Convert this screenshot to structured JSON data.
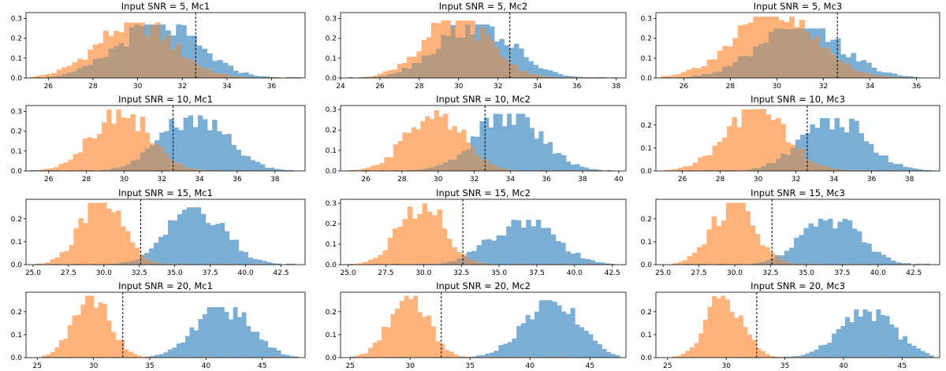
{
  "chart_data": {
    "type": "bar",
    "layout": "4 rows x 3 columns of overlaid histograms",
    "threshold_line": {
      "x": 32.6,
      "style": "dashed",
      "color": "#000000"
    },
    "series_colors": {
      "orange": "#ffb27a",
      "blue": "#7aaed4",
      "overlap": "#b79a7f"
    },
    "panels": [
      {
        "title": "Input SNR = 5, Mc1",
        "xlim": [
          25.0,
          37.5
        ],
        "ylim": [
          0,
          0.33
        ],
        "xticks": [
          "26",
          "28",
          "30",
          "32",
          "34",
          "36"
        ],
        "yticks": [
          "0.0",
          "0.1",
          "0.2",
          "0.3"
        ],
        "xtick_values": [
          26,
          28,
          30,
          32,
          34,
          36
        ],
        "ytick_values": [
          0,
          0.1,
          0.2,
          0.3
        ],
        "orange": {
          "mean": 29.9,
          "sd": 1.7,
          "peak": 0.28
        },
        "blue": {
          "mean": 30.9,
          "sd": 1.8,
          "peak": 0.27
        },
        "bins": 52,
        "range": [
          25.2,
          37.3
        ]
      },
      {
        "title": "Input SNR = 5, Mc2",
        "xlim": [
          24.0,
          38.5
        ],
        "ylim": [
          0,
          0.33
        ],
        "xticks": [
          "24",
          "26",
          "28",
          "30",
          "32",
          "34",
          "36",
          "38"
        ],
        "yticks": [
          "0.0",
          "0.1",
          "0.2",
          "0.3"
        ],
        "xtick_values": [
          24,
          26,
          28,
          30,
          32,
          34,
          36,
          38
        ],
        "ytick_values": [
          0,
          0.1,
          0.2,
          0.3
        ],
        "orange": {
          "mean": 29.9,
          "sd": 1.7,
          "peak": 0.29
        },
        "blue": {
          "mean": 30.8,
          "sd": 1.9,
          "peak": 0.27
        },
        "bins": 55,
        "range": [
          24.4,
          38.0
        ]
      },
      {
        "title": "Input SNR = 5, Mc3",
        "xlim": [
          24.8,
          37.0
        ],
        "ylim": [
          0,
          0.33
        ],
        "xticks": [
          "26",
          "28",
          "30",
          "32",
          "34",
          "36"
        ],
        "yticks": [
          "0.0",
          "0.1",
          "0.2",
          "0.3"
        ],
        "xtick_values": [
          26,
          28,
          30,
          32,
          34,
          36
        ],
        "ytick_values": [
          0,
          0.1,
          0.2,
          0.3
        ],
        "orange": {
          "mean": 29.9,
          "sd": 1.8,
          "peak": 0.31
        },
        "blue": {
          "mean": 31.0,
          "sd": 1.8,
          "peak": 0.25
        },
        "bins": 52,
        "range": [
          25.0,
          36.5
        ]
      },
      {
        "title": "Input SNR = 10, Mc1",
        "xlim": [
          24.8,
          39.6
        ],
        "ylim": [
          0,
          0.33
        ],
        "xticks": [
          "26",
          "28",
          "30",
          "32",
          "34",
          "36",
          "38"
        ],
        "yticks": [
          "0.0",
          "0.1",
          "0.2",
          "0.3"
        ],
        "xtick_values": [
          26,
          28,
          30,
          32,
          34,
          36,
          38
        ],
        "ytick_values": [
          0,
          0.1,
          0.2,
          0.3
        ],
        "orange": {
          "mean": 29.8,
          "sd": 1.5,
          "peak": 0.31
        },
        "blue": {
          "mean": 33.7,
          "sd": 1.7,
          "peak": 0.28
        },
        "bins": 55,
        "range": [
          25.0,
          39.0
        ]
      },
      {
        "title": "Input SNR = 10, Mc2",
        "xlim": [
          24.6,
          40.4
        ],
        "ylim": [
          0,
          0.32
        ],
        "xticks": [
          "26",
          "28",
          "30",
          "32",
          "34",
          "36",
          "38",
          "40"
        ],
        "yticks": [
          "0.0",
          "0.1",
          "0.2",
          "0.3"
        ],
        "xtick_values": [
          26,
          28,
          30,
          32,
          34,
          36,
          38,
          40
        ],
        "ytick_values": [
          0,
          0.1,
          0.2,
          0.3
        ],
        "orange": {
          "mean": 29.8,
          "sd": 1.5,
          "peak": 0.3
        },
        "blue": {
          "mean": 33.9,
          "sd": 1.8,
          "peak": 0.28
        },
        "bins": 58,
        "range": [
          25.0,
          39.6
        ]
      },
      {
        "title": "Input SNR = 10, Mc3",
        "xlim": [
          24.6,
          39.6
        ],
        "ylim": [
          0,
          0.285
        ],
        "xticks": [
          "26",
          "28",
          "30",
          "32",
          "34",
          "36",
          "38"
        ],
        "yticks": [
          "0.0",
          "0.1",
          "0.2"
        ],
        "xtick_values": [
          26,
          28,
          30,
          32,
          34,
          36,
          38
        ],
        "ytick_values": [
          0,
          0.1,
          0.2
        ],
        "orange": {
          "mean": 29.9,
          "sd": 1.6,
          "peak": 0.27
        },
        "blue": {
          "mean": 34.0,
          "sd": 1.7,
          "peak": 0.23
        },
        "bins": 55,
        "range": [
          25.0,
          39.2
        ]
      },
      {
        "title": "Input SNR = 15, Mc1",
        "xlim": [
          24.5,
          44.2
        ],
        "ylim": [
          0,
          0.285
        ],
        "xticks": [
          "25.0",
          "27.5",
          "30.0",
          "32.5",
          "35.0",
          "37.5",
          "40.0",
          "42.5"
        ],
        "yticks": [
          "0.0",
          "0.1",
          "0.2"
        ],
        "xtick_values": [
          25,
          27.5,
          30,
          32.5,
          35,
          37.5,
          40,
          42.5
        ],
        "ytick_values": [
          0,
          0.1,
          0.2
        ],
        "orange": {
          "mean": 29.8,
          "sd": 1.5,
          "peak": 0.27
        },
        "blue": {
          "mean": 36.5,
          "sd": 2.0,
          "peak": 0.25
        },
        "bins": 55,
        "range": [
          25.2,
          43.5
        ]
      },
      {
        "title": "Input SNR = 15, Mc2",
        "xlim": [
          24.5,
          43.4
        ],
        "ylim": [
          0,
          0.32
        ],
        "xticks": [
          "25.0",
          "27.5",
          "30.0",
          "32.5",
          "35.0",
          "37.5",
          "40.0",
          "42.5"
        ],
        "yticks": [
          "0.0",
          "0.1",
          "0.2",
          "0.3"
        ],
        "xtick_values": [
          25,
          27.5,
          30,
          32.5,
          35,
          37.5,
          40,
          42.5
        ],
        "ytick_values": [
          0,
          0.1,
          0.2,
          0.3
        ],
        "orange": {
          "mean": 29.9,
          "sd": 1.5,
          "peak": 0.3
        },
        "blue": {
          "mean": 36.6,
          "sd": 2.1,
          "peak": 0.22
        },
        "bins": 55,
        "range": [
          25.0,
          43.0
        ]
      },
      {
        "title": "Input SNR = 15, Mc3",
        "xlim": [
          24.5,
          44.3
        ],
        "ylim": [
          0,
          0.285
        ],
        "xticks": [
          "25.0",
          "27.5",
          "30.0",
          "32.5",
          "35.0",
          "37.5",
          "40.0",
          "42.5"
        ],
        "yticks": [
          "0.0",
          "0.1",
          "0.2"
        ],
        "xtick_values": [
          25,
          27.5,
          30,
          32.5,
          35,
          37.5,
          40,
          42.5
        ],
        "ytick_values": [
          0,
          0.1,
          0.2
        ],
        "orange": {
          "mean": 29.9,
          "sd": 1.5,
          "peak": 0.27
        },
        "blue": {
          "mean": 36.7,
          "sd": 2.0,
          "peak": 0.2
        },
        "bins": 55,
        "range": [
          25.0,
          43.6
        ]
      },
      {
        "title": "Input SNR = 20, Mc1",
        "xlim": [
          24.0,
          48.8
        ],
        "ylim": [
          0,
          0.285
        ],
        "xticks": [
          "25",
          "30",
          "35",
          "40",
          "45"
        ],
        "yticks": [
          "0.0",
          "0.1",
          "0.2"
        ],
        "xtick_values": [
          25,
          30,
          35,
          40,
          45
        ],
        "ytick_values": [
          0,
          0.1,
          0.2
        ],
        "orange": {
          "mean": 29.8,
          "sd": 1.6,
          "peak": 0.27
        },
        "blue": {
          "mean": 41.5,
          "sd": 2.4,
          "peak": 0.22
        },
        "bins": 60,
        "range": [
          25.0,
          48.2
        ]
      },
      {
        "title": "Input SNR = 20, Mc2",
        "xlim": [
          24.2,
          48.0
        ],
        "ylim": [
          0,
          0.285
        ],
        "xticks": [
          "25",
          "30",
          "35",
          "40",
          "45"
        ],
        "yticks": [
          "0.0",
          "0.1",
          "0.2"
        ],
        "xtick_values": [
          25,
          30,
          35,
          40,
          45
        ],
        "ytick_values": [
          0,
          0.1,
          0.2
        ],
        "orange": {
          "mean": 29.9,
          "sd": 1.6,
          "peak": 0.27
        },
        "blue": {
          "mean": 41.7,
          "sd": 2.3,
          "peak": 0.25
        },
        "bins": 60,
        "range": [
          25.0,
          47.5
        ]
      },
      {
        "title": "Input SNR = 20, Mc3",
        "xlim": [
          24.0,
          48.2
        ],
        "ylim": [
          0,
          0.285
        ],
        "xticks": [
          "25",
          "30",
          "35",
          "40",
          "45"
        ],
        "yticks": [
          "0.0",
          "0.1",
          "0.2"
        ],
        "xtick_values": [
          25,
          30,
          35,
          40,
          45
        ],
        "ytick_values": [
          0,
          0.1,
          0.2
        ],
        "orange": {
          "mean": 29.9,
          "sd": 1.5,
          "peak": 0.27
        },
        "blue": {
          "mean": 42.0,
          "sd": 2.3,
          "peak": 0.21
        },
        "bins": 60,
        "range": [
          25.0,
          47.7
        ]
      }
    ]
  }
}
